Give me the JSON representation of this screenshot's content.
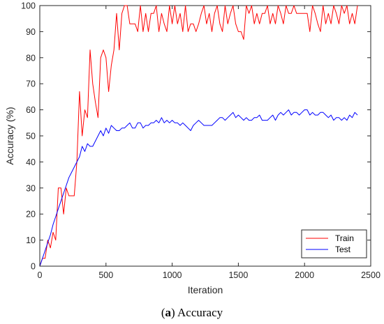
{
  "caption": {
    "letter": "a",
    "text": " Accuracy"
  },
  "chart_data": {
    "type": "line",
    "xlabel": "Iteration",
    "ylabel": "Accuracy (%)",
    "xlim": [
      0,
      2500
    ],
    "ylim": [
      0,
      100
    ],
    "xticks": [
      0,
      500,
      1000,
      1500,
      2000,
      2500
    ],
    "yticks": [
      0,
      10,
      20,
      30,
      40,
      50,
      60,
      70,
      80,
      90,
      100
    ],
    "grid": false,
    "legend_position": "bottom-right",
    "series": [
      {
        "name": "Train",
        "color": "#ff0000",
        "x": [
          0,
          20,
          40,
          60,
          80,
          100,
          120,
          140,
          160,
          180,
          200,
          220,
          240,
          260,
          280,
          300,
          320,
          340,
          360,
          380,
          400,
          420,
          440,
          460,
          480,
          500,
          520,
          540,
          560,
          580,
          600,
          620,
          640,
          660,
          680,
          700,
          720,
          740,
          760,
          780,
          800,
          820,
          840,
          860,
          880,
          900,
          920,
          940,
          960,
          980,
          1000,
          1020,
          1040,
          1060,
          1080,
          1100,
          1120,
          1140,
          1160,
          1180,
          1200,
          1220,
          1240,
          1260,
          1280,
          1300,
          1320,
          1340,
          1360,
          1380,
          1400,
          1420,
          1440,
          1460,
          1480,
          1500,
          1520,
          1540,
          1560,
          1580,
          1600,
          1620,
          1640,
          1660,
          1680,
          1700,
          1720,
          1740,
          1760,
          1780,
          1800,
          1820,
          1840,
          1860,
          1880,
          1900,
          1920,
          1940,
          1960,
          1980,
          2000,
          2020,
          2040,
          2060,
          2080,
          2100,
          2120,
          2140,
          2160,
          2180,
          2200,
          2220,
          2240,
          2260,
          2280,
          2300,
          2320,
          2340,
          2360,
          2380,
          2400
        ],
        "values": [
          0,
          3,
          3,
          10,
          7,
          13,
          10,
          30,
          30,
          20,
          30,
          27,
          27,
          27,
          40,
          67,
          50,
          60,
          57,
          83,
          70,
          63,
          57,
          80,
          83,
          80,
          67,
          77,
          83,
          97,
          83,
          97,
          100,
          100,
          93,
          93,
          93,
          90,
          100,
          90,
          97,
          90,
          97,
          97,
          100,
          90,
          97,
          93,
          90,
          100,
          93,
          100,
          93,
          97,
          90,
          100,
          90,
          93,
          93,
          90,
          93,
          97,
          100,
          93,
          97,
          90,
          97,
          100,
          93,
          90,
          100,
          93,
          97,
          100,
          93,
          90,
          90,
          87,
          100,
          97,
          100,
          93,
          97,
          93,
          97,
          97,
          100,
          93,
          97,
          93,
          100,
          97,
          93,
          100,
          97,
          97,
          100,
          97,
          97,
          97,
          97,
          97,
          90,
          100,
          97,
          93,
          90,
          100,
          93,
          97,
          93,
          100,
          97,
          93,
          100,
          97,
          100,
          93,
          97,
          93,
          100
        ]
      },
      {
        "name": "Test",
        "color": "#0000ff",
        "x": [
          0,
          20,
          40,
          60,
          80,
          100,
          120,
          140,
          160,
          180,
          200,
          220,
          240,
          260,
          280,
          300,
          320,
          340,
          360,
          380,
          400,
          420,
          440,
          460,
          480,
          500,
          520,
          540,
          560,
          580,
          600,
          620,
          640,
          660,
          680,
          700,
          720,
          740,
          760,
          780,
          800,
          820,
          840,
          860,
          880,
          900,
          920,
          940,
          960,
          980,
          1000,
          1020,
          1040,
          1060,
          1080,
          1100,
          1120,
          1140,
          1160,
          1180,
          1200,
          1220,
          1240,
          1260,
          1280,
          1300,
          1320,
          1340,
          1360,
          1380,
          1400,
          1420,
          1440,
          1460,
          1480,
          1500,
          1520,
          1540,
          1560,
          1580,
          1600,
          1620,
          1640,
          1660,
          1680,
          1700,
          1720,
          1740,
          1760,
          1780,
          1800,
          1820,
          1840,
          1860,
          1880,
          1900,
          1920,
          1940,
          1960,
          1980,
          2000,
          2020,
          2040,
          2060,
          2080,
          2100,
          2120,
          2140,
          2160,
          2180,
          2200,
          2220,
          2240,
          2260,
          2280,
          2300,
          2320,
          2340,
          2360,
          2380,
          2400
        ],
        "values": [
          0,
          3,
          6,
          9,
          12,
          16,
          19,
          22,
          25,
          28,
          31,
          34,
          36,
          38,
          40,
          42,
          46,
          44,
          47,
          46,
          46,
          48,
          50,
          52,
          50,
          53,
          51,
          54,
          53,
          52,
          52,
          53,
          53,
          54,
          55,
          53,
          53,
          55,
          55,
          53,
          54,
          54,
          55,
          55,
          56,
          55,
          57,
          55,
          56,
          55,
          56,
          55,
          55,
          54,
          55,
          54,
          53,
          52,
          54,
          55,
          56,
          55,
          54,
          54,
          54,
          54,
          55,
          56,
          57,
          57,
          56,
          57,
          58,
          59,
          57,
          58,
          57,
          56,
          57,
          56,
          56,
          57,
          57,
          58,
          56,
          56,
          56,
          57,
          58,
          56,
          58,
          59,
          58,
          59,
          60,
          58,
          59,
          59,
          58,
          59,
          60,
          60,
          58,
          59,
          58,
          58,
          59,
          59,
          58,
          57,
          58,
          56,
          57,
          57,
          56,
          57,
          56,
          58,
          57,
          59,
          58
        ]
      }
    ]
  }
}
